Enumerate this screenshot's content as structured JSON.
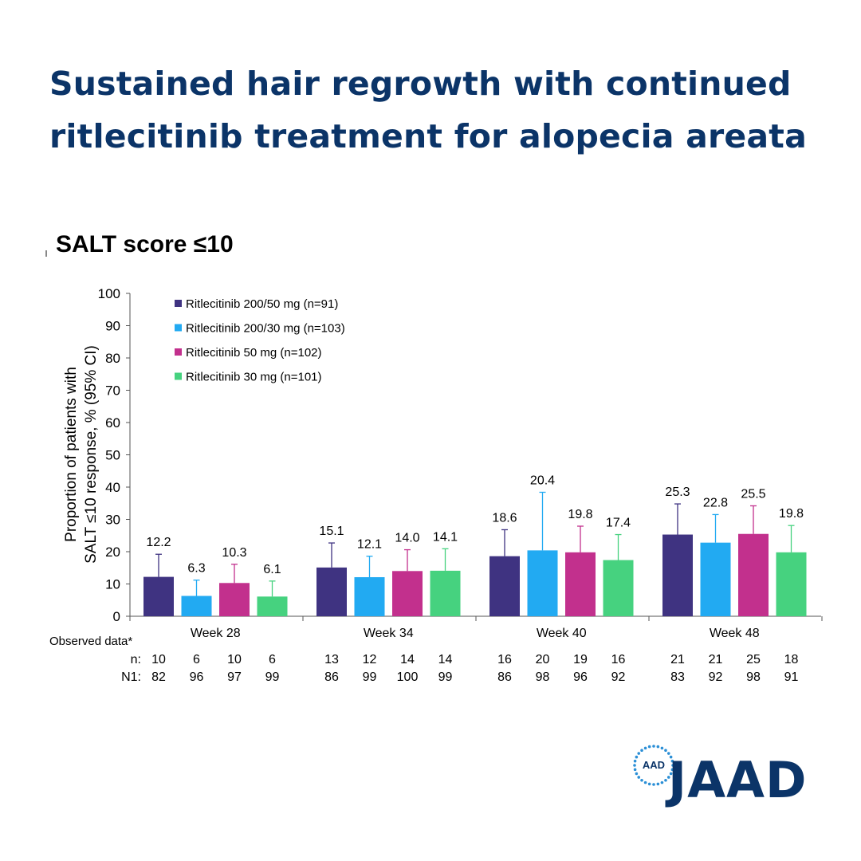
{
  "headline": {
    "line1": "Sustained hair regrowth with continued",
    "line2": "ritlecitinib treatment for alopecia areata"
  },
  "panel_title": "SALT score ≤10",
  "logo": {
    "badge": "AAD",
    "wordmark": "JAAD"
  },
  "chart_data": {
    "type": "bar",
    "title": "SALT score ≤10",
    "ylabel_lines": [
      "Proportion of patients with",
      "SALT ≤10 response, % (95% CI)"
    ],
    "ylim": [
      0,
      100
    ],
    "yticks": [
      0,
      10,
      20,
      30,
      40,
      50,
      60,
      70,
      80,
      90,
      100
    ],
    "categories": [
      "Week 28",
      "Week 34",
      "Week 40",
      "Week 48"
    ],
    "legend_position": "top-left",
    "series": [
      {
        "name": "Ritlecitinib 200/50 mg (n=91)",
        "color": "#3f3381",
        "values": [
          12.2,
          15.1,
          18.6,
          25.3
        ],
        "ci_upper": [
          19.2,
          22.7,
          26.8,
          34.8
        ]
      },
      {
        "name": "Ritlecitinib 200/30 mg (n=103)",
        "color": "#22aaf2",
        "values": [
          6.3,
          12.1,
          20.4,
          22.8
        ],
        "ci_upper": [
          11.2,
          18.6,
          38.4,
          31.5
        ]
      },
      {
        "name": "Ritlecitinib 50 mg (n=102)",
        "color": "#c2308d",
        "values": [
          10.3,
          14.0,
          19.8,
          25.5
        ],
        "ci_upper": [
          16.1,
          20.6,
          27.9,
          34.2
        ]
      },
      {
        "name": "Ritlecitinib 30 mg (n=101)",
        "color": "#46d27f",
        "values": [
          6.1,
          14.1,
          17.4,
          19.8
        ],
        "ci_upper": [
          10.9,
          20.9,
          25.3,
          28.1
        ]
      }
    ],
    "table": {
      "caption": "Observed data*",
      "rows": [
        {
          "label": "n:",
          "values": [
            [
              10,
              6,
              10,
              6
            ],
            [
              13,
              12,
              14,
              14
            ],
            [
              16,
              20,
              19,
              16
            ],
            [
              21,
              21,
              25,
              18
            ]
          ]
        },
        {
          "label": "N1:",
          "values": [
            [
              82,
              96,
              97,
              99
            ],
            [
              86,
              99,
              100,
              99
            ],
            [
              86,
              98,
              96,
              92
            ],
            [
              83,
              92,
              98,
              91
            ]
          ]
        }
      ]
    }
  }
}
